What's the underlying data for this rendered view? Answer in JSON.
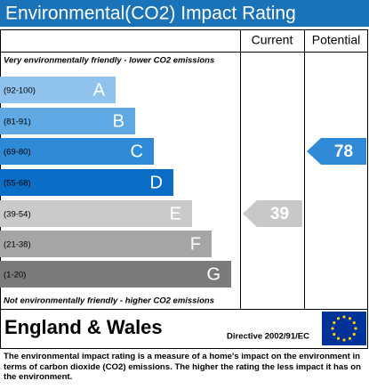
{
  "header": {
    "title": "Environmental(CO2) Impact Rating"
  },
  "columns": {
    "current": "Current",
    "potential": "Potential"
  },
  "top_note": "Very environmentally friendly - lower CO2 emissions",
  "bottom_note": "Not environmentally friendly - higher CO2 emissions",
  "bands": [
    {
      "range": "(92-100)",
      "letter": "A",
      "color": "#8fc3ee"
    },
    {
      "range": "(81-91)",
      "letter": "B",
      "color": "#5ea8e3"
    },
    {
      "range": "(69-80)",
      "letter": "C",
      "color": "#2f8ad7"
    },
    {
      "range": "(55-68)",
      "letter": "D",
      "color": "#0b6ec6"
    },
    {
      "range": "(39-54)",
      "letter": "E",
      "color": "#cacaca"
    },
    {
      "range": "(21-38)",
      "letter": "F",
      "color": "#a5a5a5"
    },
    {
      "range": "(1-20)",
      "letter": "G",
      "color": "#7b7b7b"
    }
  ],
  "current": {
    "value": 39,
    "band": 4,
    "color": "#c8c8c8"
  },
  "potential": {
    "value": 78,
    "band": 2,
    "color": "#2f8ad7"
  },
  "footer": {
    "region": "England & Wales",
    "directive": "Directive 2002/91/EC"
  },
  "description": "The environmental impact rating is a measure of a home's impact on the environment in terms of carbon dioxide (CO2) emissions. The higher the rating the less impact it has on the environment."
}
